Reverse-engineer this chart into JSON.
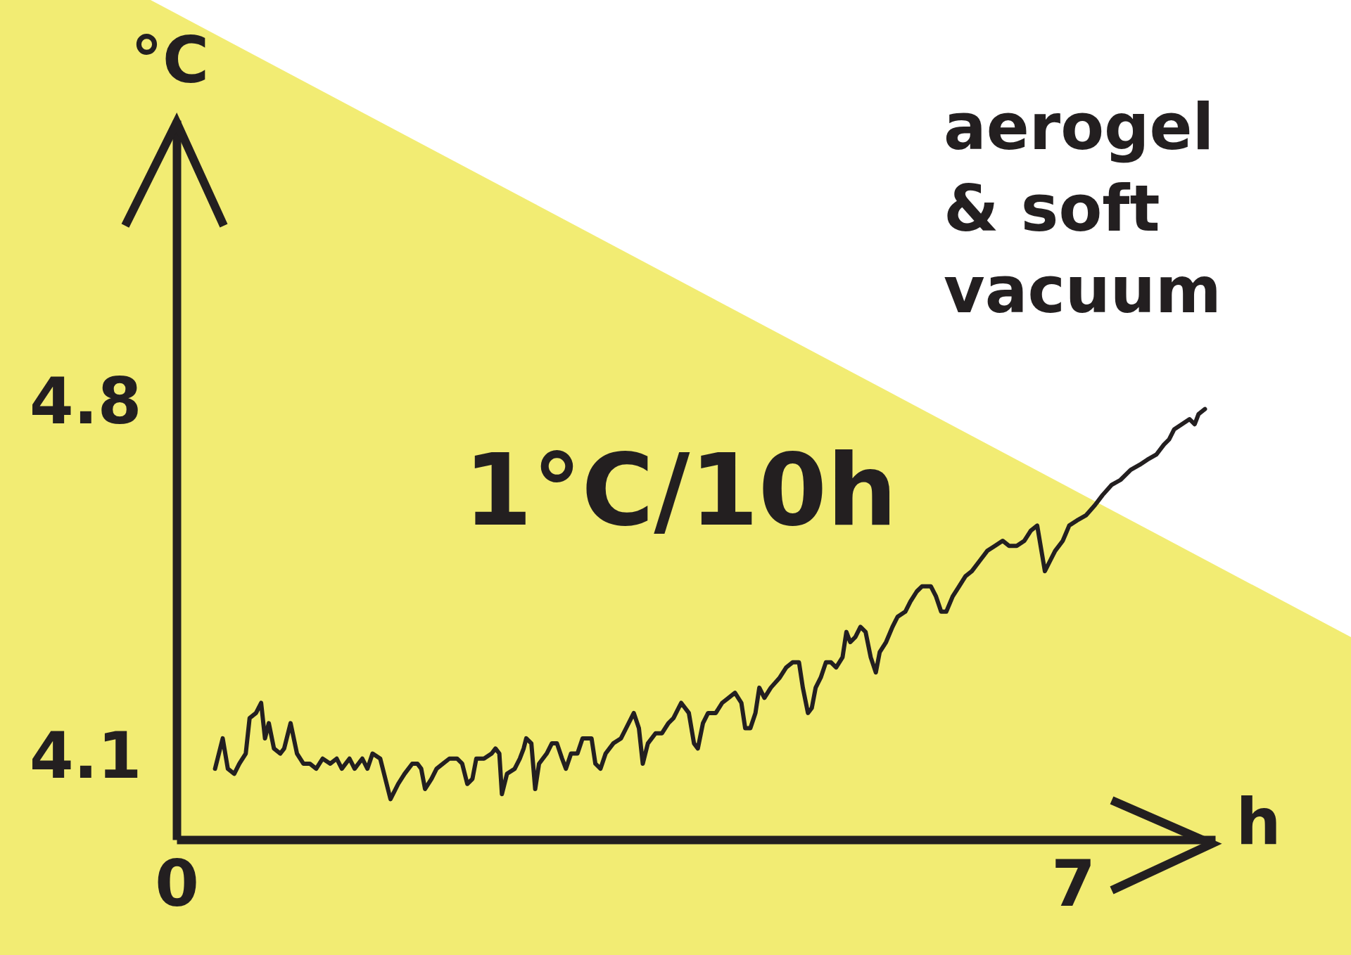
{
  "chart_data": {
    "type": "line",
    "xlabel": "h",
    "ylabel": "°C",
    "annotations": [
      "1°C/10h",
      "aerogel & soft vacuum"
    ],
    "xlim": [
      0,
      8.11
    ],
    "ylim": [
      3.94,
      5.36
    ],
    "xticks": [
      0,
      7
    ],
    "yticks": [
      4.1,
      4.8
    ],
    "x": [
      0.3,
      0.36,
      0.4,
      0.45,
      0.49,
      0.54,
      0.57,
      0.62,
      0.66,
      0.69,
      0.72,
      0.76,
      0.81,
      0.84,
      0.89,
      0.94,
      0.99,
      1.04,
      1.09,
      1.14,
      1.2,
      1.25,
      1.29,
      1.35,
      1.39,
      1.45,
      1.49,
      1.53,
      1.59,
      1.63,
      1.67,
      1.73,
      1.78,
      1.84,
      1.88,
      1.91,
      1.94,
      1.99,
      2.03,
      2.08,
      2.13,
      2.19,
      2.23,
      2.27,
      2.31,
      2.34,
      2.4,
      2.46,
      2.49,
      2.52,
      2.54,
      2.58,
      2.64,
      2.68,
      2.71,
      2.73,
      2.77,
      2.8,
      2.83,
      2.89,
      2.93,
      2.97,
      3.01,
      3.04,
      3.08,
      3.13,
      3.17,
      3.24,
      3.27,
      3.31,
      3.35,
      3.41,
      3.47,
      3.51,
      3.57,
      3.61,
      3.64,
      3.68,
      3.74,
      3.79,
      3.84,
      3.88,
      3.94,
      4.0,
      4.04,
      4.07,
      4.11,
      4.15,
      4.21,
      4.26,
      4.31,
      4.36,
      4.41,
      4.44,
      4.48,
      4.52,
      4.55,
      4.59,
      4.64,
      4.71,
      4.76,
      4.81,
      4.86,
      4.89,
      4.93,
      4.96,
      4.99,
      5.03,
      5.07,
      5.11,
      5.15,
      5.2,
      5.23,
      5.26,
      5.3,
      5.34,
      5.38,
      5.42,
      5.46,
      5.49,
      5.54,
      5.59,
      5.63,
      5.69,
      5.73,
      5.78,
      5.82,
      5.89,
      5.93,
      5.97,
      6.01,
      6.06,
      6.11,
      6.16,
      6.21,
      6.27,
      6.33,
      6.39,
      6.45,
      6.5,
      6.56,
      6.62,
      6.67,
      6.72,
      6.76,
      6.78,
      6.82,
      6.86,
      6.92,
      6.97,
      7.03,
      7.1,
      7.17,
      7.23,
      7.3,
      7.37,
      7.45,
      7.52,
      7.58,
      7.65,
      7.71,
      7.75,
      7.79,
      7.85,
      7.91,
      7.95,
      7.98,
      8.03
    ],
    "series": [
      {
        "color": "#231f20",
        "values": [
          4.08,
          4.14,
          4.08,
          4.07,
          4.09,
          4.11,
          4.18,
          4.19,
          4.21,
          4.14,
          4.17,
          4.12,
          4.11,
          4.12,
          4.17,
          4.11,
          4.09,
          4.09,
          4.08,
          4.1,
          4.09,
          4.1,
          4.08,
          4.1,
          4.08,
          4.1,
          4.08,
          4.11,
          4.1,
          4.06,
          4.02,
          4.05,
          4.07,
          4.09,
          4.09,
          4.08,
          4.04,
          4.06,
          4.08,
          4.09,
          4.1,
          4.1,
          4.09,
          4.05,
          4.06,
          4.1,
          4.1,
          4.11,
          4.12,
          4.11,
          4.03,
          4.07,
          4.08,
          4.1,
          4.12,
          4.14,
          4.13,
          4.04,
          4.09,
          4.11,
          4.13,
          4.13,
          4.1,
          4.08,
          4.11,
          4.11,
          4.14,
          4.14,
          4.09,
          4.08,
          4.11,
          4.13,
          4.14,
          4.16,
          4.19,
          4.16,
          4.09,
          4.13,
          4.15,
          4.15,
          4.17,
          4.18,
          4.21,
          4.19,
          4.13,
          4.12,
          4.17,
          4.19,
          4.19,
          4.21,
          4.22,
          4.23,
          4.21,
          4.16,
          4.16,
          4.19,
          4.24,
          4.22,
          4.24,
          4.26,
          4.28,
          4.29,
          4.29,
          4.24,
          4.19,
          4.2,
          4.24,
          4.26,
          4.29,
          4.29,
          4.28,
          4.3,
          4.35,
          4.33,
          4.34,
          4.36,
          4.35,
          4.3,
          4.27,
          4.31,
          4.33,
          4.36,
          4.38,
          4.39,
          4.41,
          4.43,
          4.44,
          4.44,
          4.42,
          4.39,
          4.39,
          4.42,
          4.44,
          4.46,
          4.47,
          4.49,
          4.51,
          4.52,
          4.53,
          4.52,
          4.52,
          4.53,
          4.55,
          4.56,
          4.5,
          4.47,
          4.49,
          4.51,
          4.53,
          4.56,
          4.57,
          4.58,
          4.6,
          4.62,
          4.64,
          4.65,
          4.67,
          4.68,
          4.69,
          4.7,
          4.72,
          4.73,
          4.75,
          4.76,
          4.77,
          4.76,
          4.78,
          4.79
        ]
      }
    ]
  }
}
